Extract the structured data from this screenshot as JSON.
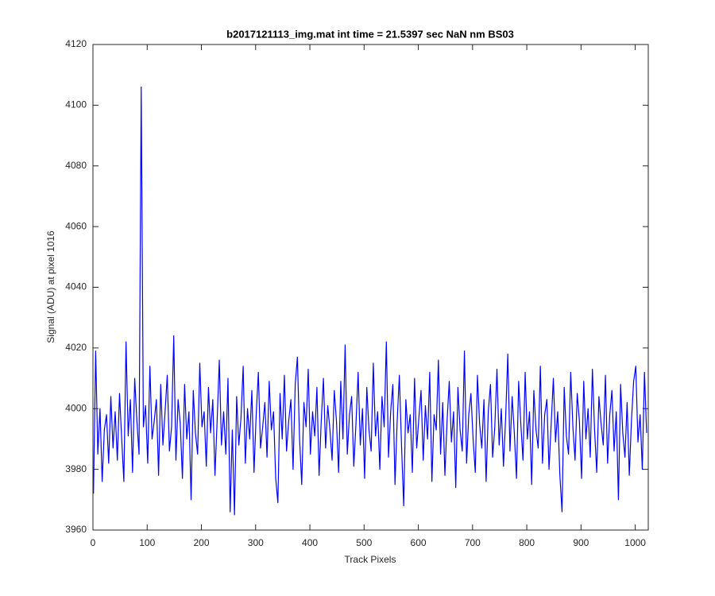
{
  "chart_data": {
    "type": "line",
    "title": "b2017121113_img.mat int time = 21.5397 sec  NaN nm BS03",
    "xlabel": "Track Pixels",
    "ylabel": "Signal (ADU) at pixel 1016",
    "xlim": [
      0,
      1024
    ],
    "ylim": [
      3960,
      4120
    ],
    "xticks": [
      0,
      100,
      200,
      300,
      400,
      500,
      600,
      700,
      800,
      900,
      1000
    ],
    "yticks": [
      3960,
      3980,
      4000,
      4020,
      4040,
      4060,
      4080,
      4100,
      4120
    ],
    "grid": false,
    "x": [
      1,
      5,
      9,
      13,
      17,
      21,
      25,
      29,
      33,
      37,
      41,
      45,
      49,
      53,
      57,
      61,
      65,
      69,
      73,
      77,
      81,
      85,
      89,
      93,
      97,
      101,
      105,
      109,
      113,
      117,
      121,
      125,
      129,
      133,
      137,
      141,
      145,
      149,
      153,
      157,
      161,
      165,
      169,
      173,
      177,
      181,
      185,
      189,
      193,
      197,
      201,
      205,
      209,
      213,
      217,
      221,
      225,
      229,
      233,
      237,
      241,
      245,
      249,
      253,
      257,
      261,
      265,
      269,
      273,
      277,
      281,
      285,
      289,
      293,
      297,
      301,
      305,
      309,
      313,
      317,
      321,
      325,
      329,
      333,
      337,
      341,
      345,
      349,
      353,
      357,
      361,
      365,
      369,
      373,
      377,
      381,
      385,
      389,
      393,
      397,
      401,
      405,
      409,
      413,
      417,
      421,
      425,
      429,
      433,
      437,
      441,
      445,
      449,
      453,
      457,
      461,
      465,
      469,
      473,
      477,
      481,
      485,
      489,
      493,
      497,
      501,
      505,
      509,
      513,
      517,
      521,
      525,
      529,
      533,
      537,
      541,
      545,
      549,
      553,
      557,
      561,
      565,
      569,
      573,
      577,
      581,
      585,
      589,
      593,
      597,
      601,
      605,
      609,
      613,
      617,
      621,
      625,
      629,
      633,
      637,
      641,
      645,
      649,
      653,
      657,
      661,
      665,
      669,
      673,
      677,
      681,
      685,
      689,
      693,
      697,
      701,
      705,
      709,
      713,
      717,
      721,
      725,
      729,
      733,
      737,
      741,
      745,
      749,
      753,
      757,
      761,
      765,
      769,
      773,
      777,
      781,
      785,
      789,
      793,
      797,
      801,
      805,
      809,
      813,
      817,
      821,
      825,
      829,
      833,
      837,
      841,
      845,
      849,
      853,
      857,
      861,
      865,
      869,
      873,
      877,
      881,
      885,
      889,
      893,
      897,
      901,
      905,
      909,
      913,
      917,
      921,
      925,
      929,
      933,
      937,
      941,
      945,
      949,
      953,
      957,
      961,
      965,
      969,
      973,
      977,
      981,
      985,
      989,
      993,
      997,
      1001,
      1005,
      1009,
      1013,
      1017,
      1021
    ],
    "series": [
      {
        "name": "signal",
        "color": "#0000ff",
        "values": [
          3972,
          4019,
          3985,
          4000,
          3976,
          3993,
          3998,
          3982,
          4004,
          3987,
          3999,
          3983,
          4005,
          3990,
          3976,
          4022,
          3991,
          4003,
          3979,
          4010,
          3996,
          3985,
          4106,
          3994,
          4001,
          3982,
          4014,
          3990,
          3996,
          4003,
          3978,
          4008,
          3988,
          3999,
          4011,
          3986,
          3994,
          4024,
          3983,
          4003,
          3995,
          3977,
          4008,
          3990,
          3999,
          3970,
          4006,
          3992,
          3985,
          4015,
          3994,
          3999,
          3981,
          4007,
          3992,
          4003,
          3978,
          3996,
          4016,
          3988,
          3999,
          3985,
          4010,
          3966,
          3993,
          3965,
          4004,
          3988,
          3997,
          4014,
          3982,
          4000,
          3990,
          4006,
          3979,
          3998,
          4012,
          3987,
          3994,
          4002,
          3984,
          4009,
          3993,
          3999,
          3977,
          3969,
          4005,
          3990,
          4011,
          3986,
          3996,
          4003,
          3980,
          4008,
          4017,
          3990,
          3975,
          4002,
          3994,
          4013,
          3985,
          3999,
          3991,
          4007,
          3978,
          3996,
          4010,
          3987,
          4001,
          3993,
          3983,
          4006,
          3996,
          3979,
          4009,
          3990,
          4021,
          3985,
          3998,
          4004,
          3981,
          3995,
          4012,
          3988,
          4000,
          3977,
          4007,
          3993,
          3986,
          4015,
          3991,
          3999,
          3980,
          4004,
          3994,
          4022,
          3984,
          3999,
          4008,
          3975,
          3996,
          4011,
          3988,
          3968,
          4003,
          3992,
          3998,
          3979,
          4010,
          3987,
          3997,
          4006,
          3983,
          4001,
          3990,
          4012,
          3976,
          3998,
          3993,
          4016,
          3985,
          4002,
          3978,
          3996,
          4009,
          3989,
          3999,
          3974,
          4007,
          3993,
          3986,
          4019,
          3982,
          3998,
          4005,
          3990,
          3979,
          4011,
          3995,
          3987,
          4003,
          3976,
          3999,
          4008,
          3984,
          3994,
          4013,
          3988,
          4000,
          3981,
          3997,
          4018,
          3986,
          4004,
          3992,
          3977,
          4009,
          3995,
          3983,
          4012,
          3990,
          3999,
          3975,
          4006,
          3993,
          3987,
          4014,
          3982,
          3998,
          4003,
          3980,
          3995,
          4010,
          3989,
          3999,
          3978,
          3966,
          4007,
          3991,
          3985,
          4012,
          3994,
          3983,
          4005,
          3996,
          3977,
          4009,
          3990,
          4000,
          3984,
          4013,
          3993,
          3979,
          4004,
          3995,
          3988,
          4011,
          3982,
          3998,
          4006,
          3986,
          3999,
          3970,
          4008,
          3992,
          3984,
          4002,
          3978,
          3996,
          4009,
          4014,
          3989,
          3998,
          3980,
          4012,
          3992
        ]
      }
    ]
  }
}
